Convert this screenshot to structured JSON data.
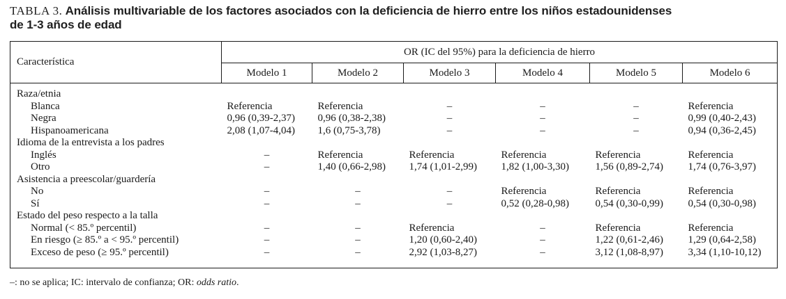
{
  "page": {
    "background_color": "#ffffff",
    "text_color": "#1a1a1a"
  },
  "title": {
    "prefix": "TABLA 3.",
    "bold_line1": "Análisis multivariable de los factores asociados con la deficiencia de hierro entre los niños estadounidenses",
    "bold_line2": "de 1-3 años de edad"
  },
  "table": {
    "corner_header": "Característica",
    "span_header": "OR (IC del 95%) para la deficiencia de hierro",
    "model_headers": [
      "Modelo 1",
      "Modelo 2",
      "Modelo 3",
      "Modelo 4",
      "Modelo 5",
      "Modelo 6"
    ],
    "rows": [
      {
        "type": "section",
        "label": "Raza/etnia",
        "values": [
          "",
          "",
          "",
          "",
          "",
          ""
        ]
      },
      {
        "type": "item",
        "label": "Blanca",
        "values": [
          "Referencia",
          "Referencia",
          "–",
          "–",
          "–",
          "Referencia"
        ]
      },
      {
        "type": "item",
        "label": "Negra",
        "values": [
          "0,96 (0,39-2,37)",
          "0,96 (0,38-2,38)",
          "–",
          "–",
          "–",
          "0,99 (0,40-2,43)"
        ]
      },
      {
        "type": "item",
        "label": "Hispanoamericana",
        "values": [
          "2,08 (1,07-4,04)",
          "1,6 (0,75-3,78)",
          "–",
          "–",
          "–",
          "0,94 (0,36-2,45)"
        ]
      },
      {
        "type": "section",
        "label": "Idioma de la entrevista a los padres",
        "values": [
          "",
          "",
          "",
          "",
          "",
          ""
        ]
      },
      {
        "type": "item",
        "label": "Inglés",
        "values": [
          "–",
          "Referencia",
          "Referencia",
          "Referencia",
          "Referencia",
          "Referencia"
        ]
      },
      {
        "type": "item",
        "label": "Otro",
        "values": [
          "–",
          "1,40 (0,66-2,98)",
          "1,74 (1,01-2,99)",
          "1,82 (1,00-3,30)",
          "1,56 (0,89-2,74)",
          "1,74 (0,76-3,97)"
        ]
      },
      {
        "type": "section",
        "label": "Asistencia a preescolar/guardería",
        "values": [
          "",
          "",
          "",
          "",
          "",
          ""
        ]
      },
      {
        "type": "item",
        "label": "No",
        "values": [
          "–",
          "–",
          "–",
          "Referencia",
          "Referencia",
          "Referencia"
        ]
      },
      {
        "type": "item",
        "label": "Sí",
        "values": [
          "–",
          "–",
          "–",
          "0,52 (0,28-0,98)",
          "0,54 (0,30-0,99)",
          "0,54 (0,30-0,98)"
        ]
      },
      {
        "type": "section",
        "label": "Estado del peso respecto a la talla",
        "values": [
          "",
          "",
          "",
          "",
          "",
          ""
        ]
      },
      {
        "type": "item",
        "label": "Normal (< 85.º percentil)",
        "values": [
          "–",
          "–",
          "Referencia",
          "–",
          "Referencia",
          "Referencia"
        ]
      },
      {
        "type": "item",
        "label": "En riesgo (≥ 85.º a < 95.º percentil)",
        "values": [
          "–",
          "–",
          "1,20 (0,60-2,40)",
          "–",
          "1,22 (0,61-2,46)",
          "1,29 (0,64-2,58)"
        ]
      },
      {
        "type": "item",
        "label": "Exceso de peso (≥ 95.º percentil)",
        "values": [
          "–",
          "–",
          "2,92 (1,03-8,27)",
          "–",
          "3,12 (1,08-8,97)",
          "3,34 (1,10-10,12)"
        ]
      }
    ]
  },
  "footnote": {
    "before_italic": "–: no se aplica; IC: intervalo de confianza; OR: ",
    "italic": "odds ratio",
    "after_italic": "."
  }
}
